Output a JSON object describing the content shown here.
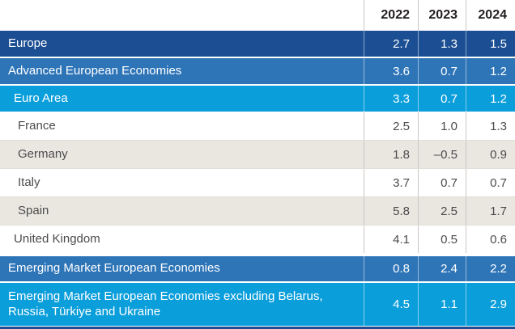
{
  "chart_data": {
    "type": "table",
    "columns": [
      "2022",
      "2023",
      "2024"
    ],
    "rows": [
      {
        "label": "Europe",
        "values": [
          "2.7",
          "1.3",
          "1.5"
        ],
        "style": "navy",
        "indent": 0
      },
      {
        "label": "Advanced European Economies",
        "values": [
          "3.6",
          "0.7",
          "1.2"
        ],
        "style": "blue",
        "indent": 0
      },
      {
        "label": "Euro Area",
        "values": [
          "3.3",
          "0.7",
          "1.2"
        ],
        "style": "cyan",
        "indent": 1
      },
      {
        "label": "France",
        "values": [
          "2.5",
          "1.0",
          "1.3"
        ],
        "style": "plain",
        "indent": 2
      },
      {
        "label": "Germany",
        "values": [
          "1.8",
          "–0.5",
          "0.9"
        ],
        "style": "shaded",
        "indent": 2
      },
      {
        "label": "Italy",
        "values": [
          "3.7",
          "0.7",
          "0.7"
        ],
        "style": "plain",
        "indent": 2
      },
      {
        "label": "Spain",
        "values": [
          "5.8",
          "2.5",
          "1.7"
        ],
        "style": "shaded",
        "indent": 2
      },
      {
        "label": "United Kingdom",
        "values": [
          "4.1",
          "0.5",
          "0.6"
        ],
        "style": "plain",
        "indent": 1
      },
      {
        "label": "Emerging Market European Economies",
        "values": [
          "0.8",
          "2.4",
          "2.2"
        ],
        "style": "blue",
        "indent": 0
      },
      {
        "label": "Emerging Market European Economies excluding Belarus, Russia, Türkiye and Ukraine",
        "values": [
          "4.5",
          "1.1",
          "2.9"
        ],
        "style": "cyan",
        "indent": 0
      }
    ],
    "colors": {
      "navy": "#1b4e93",
      "blue": "#2e75b8",
      "cyan": "#0a9edb",
      "shaded_row": "#eae7e1",
      "header_text": "#221e1f",
      "body_text": "#4b4b4d"
    },
    "legend_position": "none",
    "grid": "column-separators"
  }
}
